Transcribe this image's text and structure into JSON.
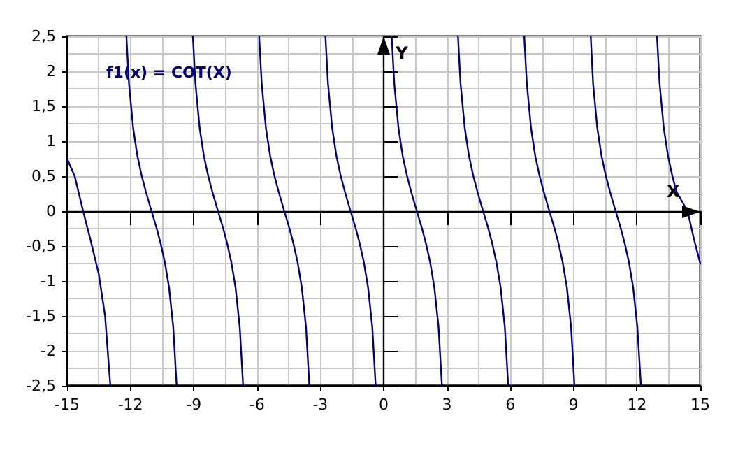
{
  "chart_data": {
    "type": "line",
    "xlabel": "X",
    "ylabel": "Y",
    "xlim": [
      -15,
      15
    ],
    "ylim": [
      -2.5,
      2.5
    ],
    "xticks": [
      -15,
      -12,
      -9,
      -6,
      -3,
      0,
      3,
      6,
      9,
      12,
      15
    ],
    "yticks": [
      {
        "value": -2.5,
        "label": "-2,5"
      },
      -2,
      {
        "value": -1.5,
        "label": "-1,5"
      },
      -1,
      {
        "value": -0.5,
        "label": "-0,5"
      },
      0,
      {
        "value": 0.5,
        "label": "0,5"
      },
      1,
      {
        "value": 1.5,
        "label": "1,5"
      },
      2,
      {
        "value": 2.5,
        "label": "2,5"
      }
    ],
    "grid": true,
    "legend": "top left",
    "line_style": "solid",
    "marker": "none",
    "series": [
      {
        "name": "f1(x) = COT(X)",
        "color": "#000080",
        "x": [
          -15,
          -14.64,
          -14.24,
          -13.9,
          -13.5,
          -13.2,
          -12.95,
          -12.57,
          -12.19,
          -12.07,
          -11.87,
          -11.67,
          -11.47,
          -11.27,
          -11.0,
          -10.77,
          -10.57,
          -10.37,
          -10.17,
          -9.97,
          -9.81,
          -9.42,
          -9.04,
          -8.92,
          -8.72,
          -8.52,
          -8.32,
          -8.12,
          -7.85,
          -7.62,
          -7.42,
          -7.22,
          -7.02,
          -6.82,
          -6.66,
          -6.28,
          -5.9,
          -5.78,
          -5.58,
          -5.38,
          -5.18,
          -4.98,
          -4.71,
          -4.48,
          -4.28,
          -4.08,
          -3.88,
          -3.68,
          -3.52,
          -3.14,
          -2.76,
          -2.64,
          -2.44,
          -2.24,
          -2.04,
          -1.84,
          -1.57,
          -1.34,
          -1.14,
          -0.94,
          -0.74,
          -0.54,
          -0.38,
          0,
          0.38,
          0.5,
          0.7,
          0.9,
          1.1,
          1.3,
          1.57,
          1.8,
          2.0,
          2.2,
          2.4,
          2.6,
          2.76,
          3.14,
          3.52,
          3.64,
          3.84,
          4.04,
          4.24,
          4.44,
          4.71,
          4.94,
          5.14,
          5.34,
          5.54,
          5.74,
          5.9,
          6.28,
          6.66,
          6.78,
          6.98,
          7.18,
          7.38,
          7.58,
          7.85,
          8.08,
          8.28,
          8.48,
          8.68,
          8.88,
          9.04,
          9.42,
          9.81,
          9.92,
          10.12,
          10.32,
          10.52,
          10.72,
          10.99,
          11.22,
          11.42,
          11.62,
          11.82,
          12.02,
          12.19,
          12.57,
          12.95,
          13.07,
          13.27,
          13.47,
          13.67,
          13.87,
          14.4,
          14.7,
          15
        ],
        "values": [
          0.75,
          0.5,
          0,
          -0.4,
          -0.9,
          -1.5,
          -2.5,
          null,
          2.5,
          1.83,
          1.19,
          0.79,
          0.51,
          0.28,
          0,
          -0.23,
          -0.46,
          -0.73,
          -1.09,
          -1.66,
          -2.5,
          null,
          2.5,
          1.83,
          1.19,
          0.79,
          0.51,
          0.28,
          0,
          -0.23,
          -0.46,
          -0.73,
          -1.09,
          -1.66,
          -2.5,
          null,
          2.5,
          1.83,
          1.19,
          0.79,
          0.51,
          0.28,
          0,
          -0.23,
          -0.46,
          -0.73,
          -1.09,
          -1.66,
          -2.5,
          null,
          2.5,
          1.83,
          1.19,
          0.79,
          0.51,
          0.28,
          0,
          -0.23,
          -0.46,
          -0.73,
          -1.09,
          -1.66,
          -2.5,
          null,
          2.5,
          1.83,
          1.19,
          0.79,
          0.51,
          0.28,
          0,
          -0.23,
          -0.46,
          -0.73,
          -1.09,
          -1.66,
          -2.5,
          null,
          2.5,
          1.83,
          1.19,
          0.79,
          0.51,
          0.28,
          0,
          -0.23,
          -0.46,
          -0.73,
          -1.09,
          -1.66,
          -2.5,
          null,
          2.5,
          1.83,
          1.19,
          0.79,
          0.51,
          0.28,
          0,
          -0.23,
          -0.46,
          -0.73,
          -1.09,
          -1.66,
          -2.5,
          null,
          2.5,
          1.83,
          1.19,
          0.79,
          0.51,
          0.28,
          0,
          -0.23,
          -0.46,
          -0.73,
          -1.09,
          -1.66,
          -2.5,
          null,
          2.5,
          1.83,
          1.19,
          0.79,
          0.51,
          0.28,
          0,
          -0.4,
          -0.75
        ]
      }
    ]
  }
}
